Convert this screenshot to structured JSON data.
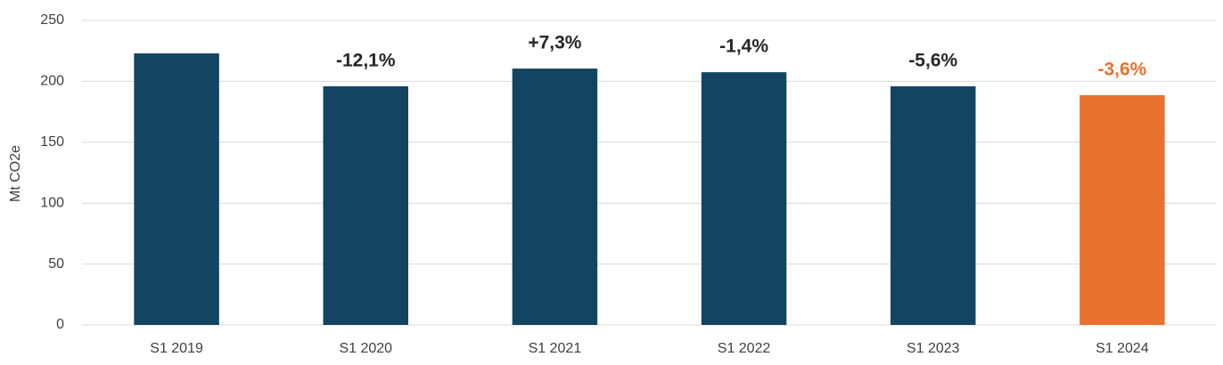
{
  "chart_data": {
    "type": "bar",
    "y_axis_label": "Mt CO2e",
    "categories": [
      "S1 2019",
      "S1 2020",
      "S1 2021",
      "S1 2022",
      "S1 2023",
      "S1 2024"
    ],
    "values": [
      223,
      196,
      210.5,
      207.5,
      196,
      188.7
    ],
    "colors": [
      "#134563",
      "#134563",
      "#134563",
      "#134563",
      "#134563",
      "#e8712f"
    ],
    "annotations": [
      null,
      "-12,1%",
      "+7,3%",
      "-1,4%",
      "-5,6%",
      "-3,6%"
    ],
    "annotation_colors": [
      "#262626",
      "#262626",
      "#262626",
      "#262626",
      "#262626",
      "#e8712f"
    ],
    "ylim": [
      0,
      250
    ],
    "yticks": [
      0,
      50,
      100,
      150,
      200,
      250
    ],
    "grid": true
  }
}
